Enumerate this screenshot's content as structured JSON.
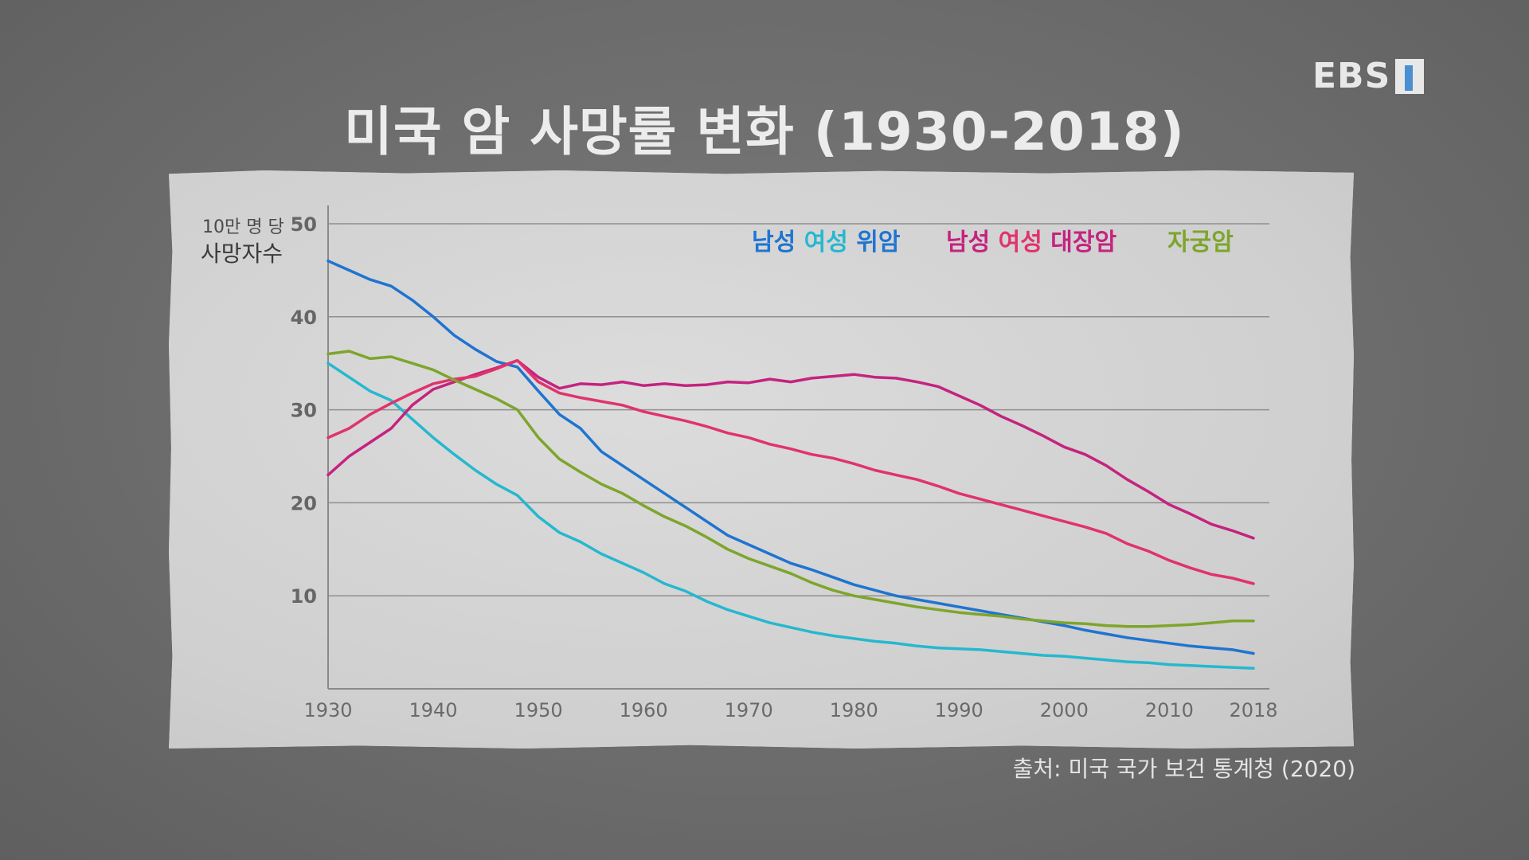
{
  "logo": {
    "text": "EBS"
  },
  "title": "미국 암 사망률 변화 (1930-2018)",
  "source": "출처: 미국 국가 보건 통계청 (2020)",
  "colors": {
    "background": "#6f6f6f",
    "paper": "#d4d4d4",
    "stomach_male": "#1f74d0",
    "stomach_female": "#25b8cf",
    "colorectal_male": "#c4237f",
    "colorectal_female": "#e0336c",
    "cervical": "#7ea52c"
  },
  "chart_data": {
    "type": "line",
    "ylabel_line1": "10만 명 당",
    "ylabel_line2": "사망자수",
    "xlim": [
      1930,
      2018
    ],
    "ylim": [
      0,
      50
    ],
    "yticks": [
      10,
      20,
      30,
      40,
      50
    ],
    "xticks": [
      1930,
      1940,
      1950,
      1960,
      1970,
      1980,
      1990,
      2000,
      2010,
      2018
    ],
    "grid": true,
    "legend": [
      {
        "group": "stomach",
        "parts": [
          {
            "text": "남성",
            "color": "#1f74d0"
          },
          {
            "text": "여성",
            "color": "#25b8cf"
          },
          {
            "text": "위암",
            "color": "#1f74d0"
          }
        ]
      },
      {
        "group": "colorectal",
        "parts": [
          {
            "text": "남성",
            "color": "#c4237f"
          },
          {
            "text": "여성",
            "color": "#e0336c"
          },
          {
            "text": "대장암",
            "color": "#c4237f"
          }
        ]
      },
      {
        "group": "cervical",
        "parts": [
          {
            "text": "자궁암",
            "color": "#7ea52c"
          }
        ]
      }
    ],
    "series": [
      {
        "key": "stomach_male",
        "color": "#1f74d0",
        "points": [
          [
            1930,
            46
          ],
          [
            1932,
            45
          ],
          [
            1934,
            44
          ],
          [
            1936,
            43.3
          ],
          [
            1938,
            41.8
          ],
          [
            1940,
            40
          ],
          [
            1942,
            38
          ],
          [
            1944,
            36.5
          ],
          [
            1946,
            35.2
          ],
          [
            1948,
            34.6
          ],
          [
            1950,
            32
          ],
          [
            1952,
            29.5
          ],
          [
            1954,
            28
          ],
          [
            1956,
            25.5
          ],
          [
            1958,
            24
          ],
          [
            1960,
            22.5
          ],
          [
            1962,
            21
          ],
          [
            1964,
            19.5
          ],
          [
            1966,
            18
          ],
          [
            1968,
            16.5
          ],
          [
            1970,
            15.5
          ],
          [
            1972,
            14.5
          ],
          [
            1974,
            13.5
          ],
          [
            1976,
            12.8
          ],
          [
            1978,
            12
          ],
          [
            1980,
            11.2
          ],
          [
            1982,
            10.6
          ],
          [
            1984,
            10
          ],
          [
            1986,
            9.6
          ],
          [
            1988,
            9.2
          ],
          [
            1990,
            8.8
          ],
          [
            1992,
            8.4
          ],
          [
            1994,
            8
          ],
          [
            1996,
            7.6
          ],
          [
            1998,
            7.2
          ],
          [
            2000,
            6.8
          ],
          [
            2002,
            6.3
          ],
          [
            2004,
            5.9
          ],
          [
            2006,
            5.5
          ],
          [
            2008,
            5.2
          ],
          [
            2010,
            4.9
          ],
          [
            2012,
            4.6
          ],
          [
            2014,
            4.4
          ],
          [
            2016,
            4.2
          ],
          [
            2018,
            3.8
          ]
        ]
      },
      {
        "key": "stomach_female",
        "color": "#25b8cf",
        "points": [
          [
            1930,
            35
          ],
          [
            1932,
            33.5
          ],
          [
            1934,
            32
          ],
          [
            1936,
            31
          ],
          [
            1938,
            29
          ],
          [
            1940,
            27
          ],
          [
            1942,
            25.2
          ],
          [
            1944,
            23.5
          ],
          [
            1946,
            22
          ],
          [
            1948,
            20.8
          ],
          [
            1950,
            18.5
          ],
          [
            1952,
            16.8
          ],
          [
            1954,
            15.8
          ],
          [
            1956,
            14.5
          ],
          [
            1958,
            13.5
          ],
          [
            1960,
            12.5
          ],
          [
            1962,
            11.3
          ],
          [
            1964,
            10.5
          ],
          [
            1966,
            9.4
          ],
          [
            1968,
            8.5
          ],
          [
            1970,
            7.8
          ],
          [
            1972,
            7.1
          ],
          [
            1974,
            6.6
          ],
          [
            1976,
            6.1
          ],
          [
            1978,
            5.7
          ],
          [
            1980,
            5.4
          ],
          [
            1982,
            5.1
          ],
          [
            1984,
            4.9
          ],
          [
            1986,
            4.6
          ],
          [
            1988,
            4.4
          ],
          [
            1990,
            4.3
          ],
          [
            1992,
            4.2
          ],
          [
            1994,
            4
          ],
          [
            1996,
            3.8
          ],
          [
            1998,
            3.6
          ],
          [
            2000,
            3.5
          ],
          [
            2002,
            3.3
          ],
          [
            2004,
            3.1
          ],
          [
            2006,
            2.9
          ],
          [
            2008,
            2.8
          ],
          [
            2010,
            2.6
          ],
          [
            2012,
            2.5
          ],
          [
            2014,
            2.4
          ],
          [
            2016,
            2.3
          ],
          [
            2018,
            2.2
          ]
        ]
      },
      {
        "key": "colorectal_male",
        "color": "#c4237f",
        "points": [
          [
            1930,
            23
          ],
          [
            1932,
            25
          ],
          [
            1934,
            26.5
          ],
          [
            1936,
            28
          ],
          [
            1938,
            30.5
          ],
          [
            1940,
            32.2
          ],
          [
            1942,
            33
          ],
          [
            1944,
            33.8
          ],
          [
            1946,
            34.5
          ],
          [
            1948,
            35.3
          ],
          [
            1950,
            33.5
          ],
          [
            1952,
            32.3
          ],
          [
            1954,
            32.8
          ],
          [
            1956,
            32.7
          ],
          [
            1958,
            33
          ],
          [
            1960,
            32.6
          ],
          [
            1962,
            32.8
          ],
          [
            1964,
            32.6
          ],
          [
            1966,
            32.7
          ],
          [
            1968,
            33
          ],
          [
            1970,
            32.9
          ],
          [
            1972,
            33.3
          ],
          [
            1974,
            33
          ],
          [
            1976,
            33.4
          ],
          [
            1978,
            33.6
          ],
          [
            1980,
            33.8
          ],
          [
            1982,
            33.5
          ],
          [
            1984,
            33.4
          ],
          [
            1986,
            33
          ],
          [
            1988,
            32.5
          ],
          [
            1990,
            31.5
          ],
          [
            1992,
            30.5
          ],
          [
            1994,
            29.3
          ],
          [
            1996,
            28.3
          ],
          [
            1998,
            27.2
          ],
          [
            2000,
            26
          ],
          [
            2002,
            25.2
          ],
          [
            2004,
            24
          ],
          [
            2006,
            22.5
          ],
          [
            2008,
            21.2
          ],
          [
            2010,
            19.8
          ],
          [
            2012,
            18.8
          ],
          [
            2014,
            17.7
          ],
          [
            2016,
            17
          ],
          [
            2018,
            16.2
          ]
        ]
      },
      {
        "key": "colorectal_female",
        "color": "#e0336c",
        "points": [
          [
            1930,
            27
          ],
          [
            1932,
            28
          ],
          [
            1934,
            29.5
          ],
          [
            1936,
            30.7
          ],
          [
            1938,
            31.8
          ],
          [
            1940,
            32.8
          ],
          [
            1942,
            33.3
          ],
          [
            1944,
            33.6
          ],
          [
            1946,
            34.4
          ],
          [
            1948,
            35.3
          ],
          [
            1950,
            33
          ],
          [
            1952,
            31.8
          ],
          [
            1954,
            31.3
          ],
          [
            1956,
            30.9
          ],
          [
            1958,
            30.5
          ],
          [
            1960,
            29.8
          ],
          [
            1962,
            29.3
          ],
          [
            1964,
            28.8
          ],
          [
            1966,
            28.2
          ],
          [
            1968,
            27.5
          ],
          [
            1970,
            27
          ],
          [
            1972,
            26.3
          ],
          [
            1974,
            25.8
          ],
          [
            1976,
            25.2
          ],
          [
            1978,
            24.8
          ],
          [
            1980,
            24.2
          ],
          [
            1982,
            23.5
          ],
          [
            1984,
            23
          ],
          [
            1986,
            22.5
          ],
          [
            1988,
            21.8
          ],
          [
            1990,
            21
          ],
          [
            1992,
            20.4
          ],
          [
            1994,
            19.8
          ],
          [
            1996,
            19.2
          ],
          [
            1998,
            18.6
          ],
          [
            2000,
            18
          ],
          [
            2002,
            17.4
          ],
          [
            2004,
            16.7
          ],
          [
            2006,
            15.6
          ],
          [
            2008,
            14.8
          ],
          [
            2010,
            13.8
          ],
          [
            2012,
            13
          ],
          [
            2014,
            12.3
          ],
          [
            2016,
            11.9
          ],
          [
            2018,
            11.3
          ]
        ]
      },
      {
        "key": "cervical",
        "color": "#7ea52c",
        "points": [
          [
            1930,
            36
          ],
          [
            1932,
            36.3
          ],
          [
            1934,
            35.5
          ],
          [
            1936,
            35.7
          ],
          [
            1938,
            35
          ],
          [
            1940,
            34.3
          ],
          [
            1942,
            33.2
          ],
          [
            1944,
            32.2
          ],
          [
            1946,
            31.2
          ],
          [
            1948,
            30
          ],
          [
            1950,
            27
          ],
          [
            1952,
            24.7
          ],
          [
            1954,
            23.3
          ],
          [
            1956,
            22
          ],
          [
            1958,
            21
          ],
          [
            1960,
            19.7
          ],
          [
            1962,
            18.5
          ],
          [
            1964,
            17.5
          ],
          [
            1966,
            16.3
          ],
          [
            1968,
            15
          ],
          [
            1970,
            14
          ],
          [
            1972,
            13.2
          ],
          [
            1974,
            12.4
          ],
          [
            1976,
            11.4
          ],
          [
            1978,
            10.6
          ],
          [
            1980,
            10
          ],
          [
            1982,
            9.6
          ],
          [
            1984,
            9.2
          ],
          [
            1986,
            8.8
          ],
          [
            1988,
            8.5
          ],
          [
            1990,
            8.2
          ],
          [
            1992,
            8
          ],
          [
            1994,
            7.8
          ],
          [
            1996,
            7.5
          ],
          [
            1998,
            7.3
          ],
          [
            2000,
            7.1
          ],
          [
            2002,
            7
          ],
          [
            2004,
            6.8
          ],
          [
            2006,
            6.7
          ],
          [
            2008,
            6.7
          ],
          [
            2010,
            6.8
          ],
          [
            2012,
            6.9
          ],
          [
            2014,
            7.1
          ],
          [
            2016,
            7.3
          ],
          [
            2018,
            7.3
          ]
        ]
      }
    ]
  }
}
